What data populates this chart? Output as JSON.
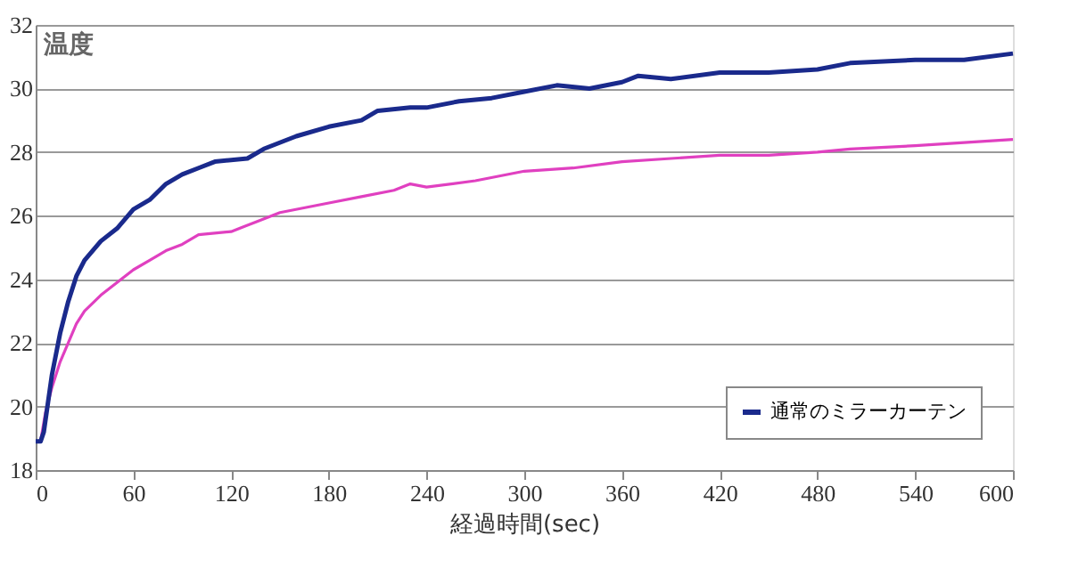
{
  "chart_data": {
    "type": "line",
    "ylabel": "温度",
    "xlabel": "経過時間(sec)",
    "xlim": [
      0,
      600
    ],
    "xticks": [
      0,
      60,
      120,
      180,
      240,
      300,
      360,
      420,
      480,
      540,
      600
    ],
    "ylim": [
      18,
      32
    ],
    "yticks": [
      18,
      20,
      22,
      24,
      26,
      28,
      30,
      32
    ],
    "grid": "y",
    "legend": "bottom right",
    "marker": "none",
    "line_style": "solid",
    "series": [
      {
        "color": "#e040c0",
        "x": [
          0,
          3,
          6,
          10,
          15,
          20,
          25,
          30,
          40,
          50,
          60,
          70,
          80,
          90,
          100,
          120,
          135,
          150,
          180,
          200,
          220,
          230,
          240,
          270,
          300,
          330,
          360,
          390,
          420,
          450,
          480,
          500,
          540,
          570,
          600
        ],
        "values": [
          18.9,
          18.9,
          19.8,
          20.6,
          21.4,
          22.0,
          22.6,
          23.0,
          23.5,
          23.9,
          24.3,
          24.6,
          24.9,
          25.1,
          25.4,
          25.5,
          25.8,
          26.1,
          26.4,
          26.6,
          26.8,
          27.0,
          26.9,
          27.1,
          27.4,
          27.5,
          27.7,
          27.8,
          27.9,
          27.9,
          28.0,
          28.1,
          28.2,
          28.3,
          28.4
        ]
      },
      {
        "name": "通常のミラーカーテン",
        "color": "#1a2a8c",
        "x": [
          0,
          3,
          5,
          10,
          15,
          20,
          25,
          30,
          40,
          50,
          60,
          70,
          80,
          90,
          100,
          110,
          130,
          140,
          160,
          180,
          200,
          210,
          230,
          240,
          260,
          280,
          300,
          320,
          340,
          360,
          370,
          390,
          420,
          450,
          480,
          500,
          540,
          570,
          600
        ],
        "values": [
          18.9,
          18.9,
          19.2,
          21.0,
          22.3,
          23.3,
          24.1,
          24.6,
          25.2,
          25.6,
          26.2,
          26.5,
          27.0,
          27.3,
          27.5,
          27.7,
          27.8,
          28.1,
          28.5,
          28.8,
          29.0,
          29.3,
          29.4,
          29.4,
          29.6,
          29.7,
          29.9,
          30.1,
          30.0,
          30.2,
          30.4,
          30.3,
          30.5,
          30.5,
          30.6,
          30.8,
          30.9,
          30.9,
          31.1
        ]
      }
    ]
  }
}
